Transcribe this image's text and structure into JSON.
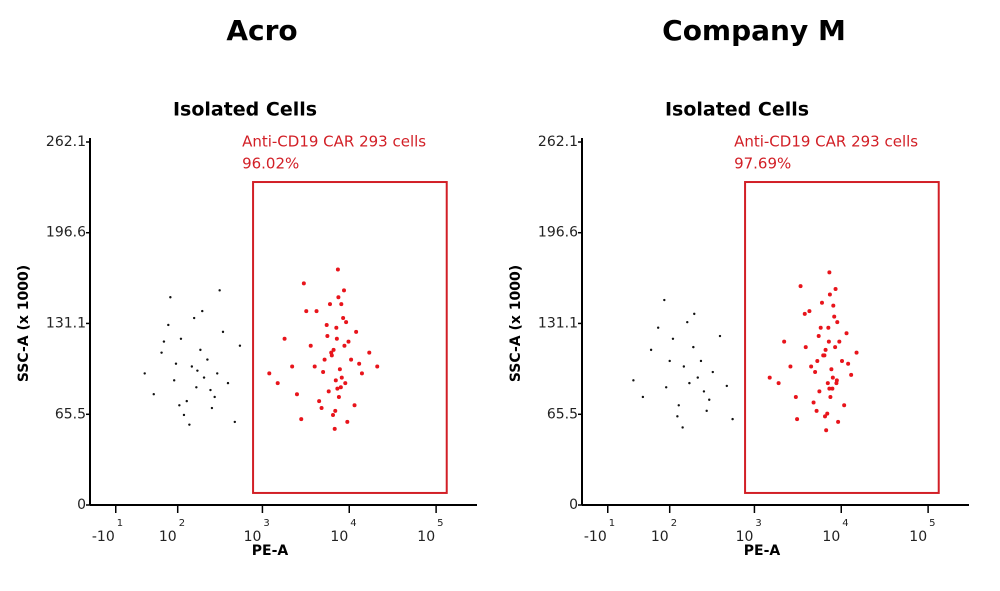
{
  "chart_data": [
    {
      "type": "scatter",
      "title": "Acro",
      "subtitle": "Isolated Cells",
      "xlabel": "PE-A",
      "ylabel": "SSC-A (x 1000)",
      "xlim": [
        -50,
        165000
      ],
      "ylim": [
        0,
        262.1
      ],
      "xticks": [
        {
          "value": -10,
          "label": "-10",
          "exponent": "1"
        },
        {
          "value": 100,
          "label": "10",
          "exponent": "2"
        },
        {
          "value": 1000,
          "label": "10",
          "exponent": "3"
        },
        {
          "value": 10000,
          "label": "10",
          "exponent": "4"
        },
        {
          "value": 100000,
          "label": "10",
          "exponent": "5"
        }
      ],
      "yticks": [
        0,
        65.5,
        131.1,
        196.6,
        262.1
      ],
      "gate": {
        "name": "Anti-CD19 CAR 293 cells",
        "percent": "96.02%",
        "x": [
          780,
          132500
        ],
        "y": [
          8.7,
          233.2
        ],
        "color": "#d21f26"
      },
      "series": [
        {
          "color": "#111111",
          "x": [
            30,
            45,
            60,
            75,
            90,
            110,
            130,
            150,
            170,
            200,
            230,
            260,
            300,
            350,
            400,
            480,
            550,
            80,
            120,
            160,
            210,
            280,
            95,
            140,
            190,
            250,
            320,
            65,
            105,
            175
          ],
          "y": [
            95,
            80,
            110,
            130,
            90,
            120,
            75,
            100,
            85,
            140,
            105,
            70,
            95,
            125,
            88,
            60,
            115,
            150,
            65,
            135,
            92,
            78,
            102,
            58,
            112,
            83,
            155,
            118,
            72,
            97
          ]
        },
        {
          "color": "#e8141b",
          "x": [
            1200,
            1800,
            2500,
            3200,
            4000,
            4800,
            5500,
            6200,
            7000,
            7500,
            8000,
            8800,
            9500,
            10500,
            12000,
            14000,
            17000,
            21000,
            3000,
            4500,
            6000,
            6800,
            7200,
            7800,
            8500,
            9000,
            5200,
            6500,
            7400,
            8200,
            2200,
            3600,
            5800,
            7100,
            9800,
            11500,
            4200,
            6300,
            7600,
            8700,
            1500,
            2800,
            5000,
            6600,
            7300,
            9200,
            13000,
            5600,
            6900,
            8100
          ],
          "y": [
            95,
            120,
            80,
            140,
            100,
            70,
            130,
            110,
            90,
            150,
            85,
            115,
            60,
            105,
            125,
            95,
            110,
            100,
            160,
            75,
            145,
            55,
            120,
            98,
            135,
            88,
            105,
            65,
            170,
            92,
            100,
            115,
            82,
            128,
            118,
            72,
            140,
            108,
            78,
            155,
            88,
            62,
            96,
            112,
            84,
            132,
            102,
            122,
            68,
            145
          ]
        }
      ]
    },
    {
      "type": "scatter",
      "title": "Company M",
      "subtitle": "Isolated Cells",
      "xlabel": "PE-A",
      "ylabel": "SSC-A (x 1000)",
      "xlim": [
        -50,
        165000
      ],
      "ylim": [
        0,
        262.1
      ],
      "xticks": [
        {
          "value": -10,
          "label": "-10",
          "exponent": "1"
        },
        {
          "value": 100,
          "label": "10",
          "exponent": "2"
        },
        {
          "value": 1000,
          "label": "10",
          "exponent": "3"
        },
        {
          "value": 10000,
          "label": "10",
          "exponent": "4"
        },
        {
          "value": 100000,
          "label": "10",
          "exponent": "5"
        }
      ],
      "yticks": [
        0,
        65.5,
        131.1,
        196.6,
        262.1
      ],
      "gate": {
        "name": "Anti-CD19 CAR 293 cells",
        "percent": "97.69%",
        "x": [
          780,
          132500
        ],
        "y": [
          8.7,
          233.2
        ],
        "color": "#d21f26"
      },
      "series": [
        {
          "color": "#111111",
          "x": [
            25,
            40,
            55,
            70,
            90,
            110,
            130,
            150,
            175,
            200,
            240,
            280,
            330,
            400,
            480,
            560,
            85,
            125,
            165,
            220,
            300,
            100,
            145,
            195,
            260
          ],
          "y": [
            90,
            78,
            112,
            128,
            85,
            120,
            72,
            100,
            88,
            138,
            104,
            68,
            96,
            122,
            86,
            62,
            148,
            64,
            132,
            92,
            76,
            104,
            56,
            114,
            82
          ]
        },
        {
          "color": "#e8141b",
          "x": [
            1500,
            2200,
            3000,
            3800,
            4500,
            5200,
            5800,
            6400,
            7000,
            7400,
            7900,
            8500,
            9200,
            10200,
            11500,
            13000,
            15000,
            3400,
            4800,
            6000,
            6700,
            7200,
            7700,
            8300,
            8800,
            5300,
            6500,
            7300,
            8000,
            2600,
            3900,
            5600,
            7100,
            9500,
            10800,
            4300,
            6200,
            7500,
            8600,
            1900,
            3100,
            5000,
            6600,
            7300,
            9000,
            12000,
            5500,
            6900,
            8100,
            8900
          ],
          "y": [
            92,
            118,
            78,
            138,
            100,
            68,
            128,
            108,
            88,
            152,
            84,
            114,
            60,
            104,
            124,
            94,
            110,
            158,
            74,
            146,
            54,
            118,
            98,
            136,
            88,
            104,
            64,
            168,
            92,
            100,
            114,
            82,
            128,
            118,
            72,
            140,
            108,
            78,
            156,
            88,
            62,
            96,
            112,
            84,
            132,
            102,
            122,
            66,
            144,
            90
          ]
        }
      ]
    }
  ]
}
